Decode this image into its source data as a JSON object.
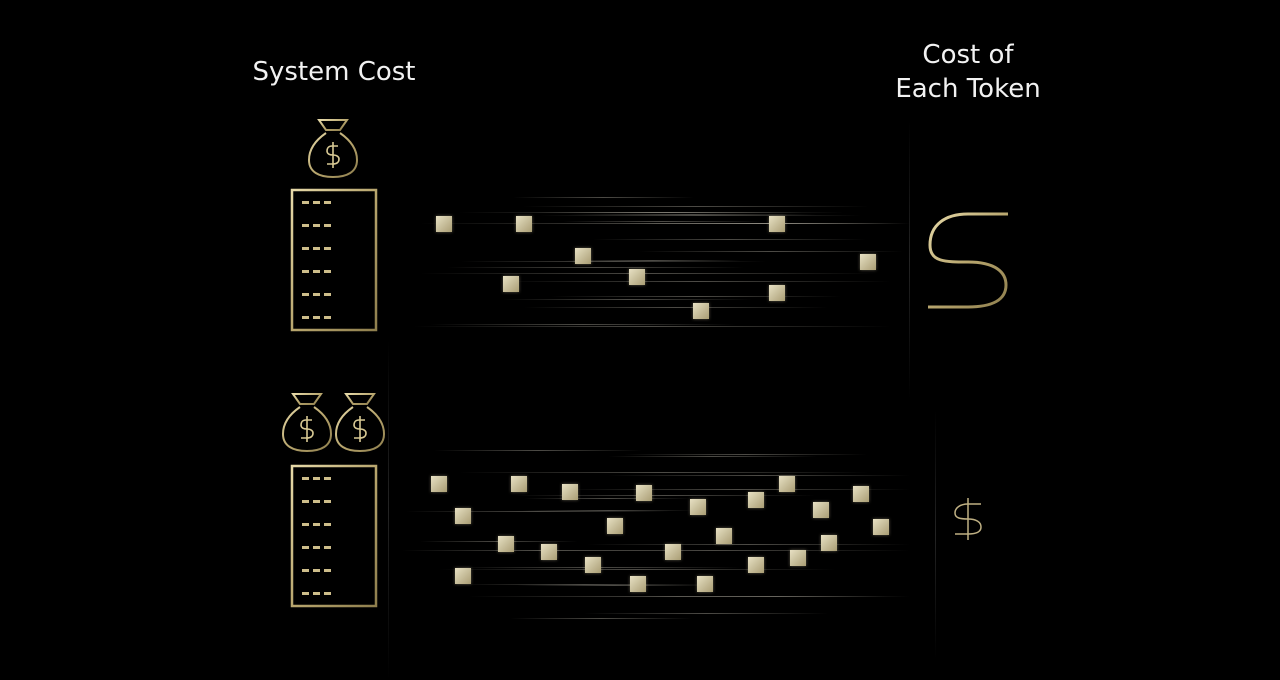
{
  "labels": {
    "system_cost": "System Cost",
    "cost_per_token": "Cost of\nEach Token"
  },
  "rows": [
    {
      "name": "single-system",
      "money_bags": 1,
      "tokens_shown": 9,
      "token_cost_symbol": "$",
      "token_cost_size": "large"
    },
    {
      "name": "double-system",
      "money_bags": 2,
      "tokens_shown": 23,
      "token_cost_symbol": "$",
      "token_cost_size": "small"
    }
  ],
  "colors": {
    "background": "#000000",
    "gold": "#c9b98a",
    "token": "#d8cfae",
    "text": "#f2f2f2"
  },
  "icons": [
    "money-bag-icon",
    "server-rack-icon",
    "token-square-icon",
    "dollar-icon"
  ]
}
